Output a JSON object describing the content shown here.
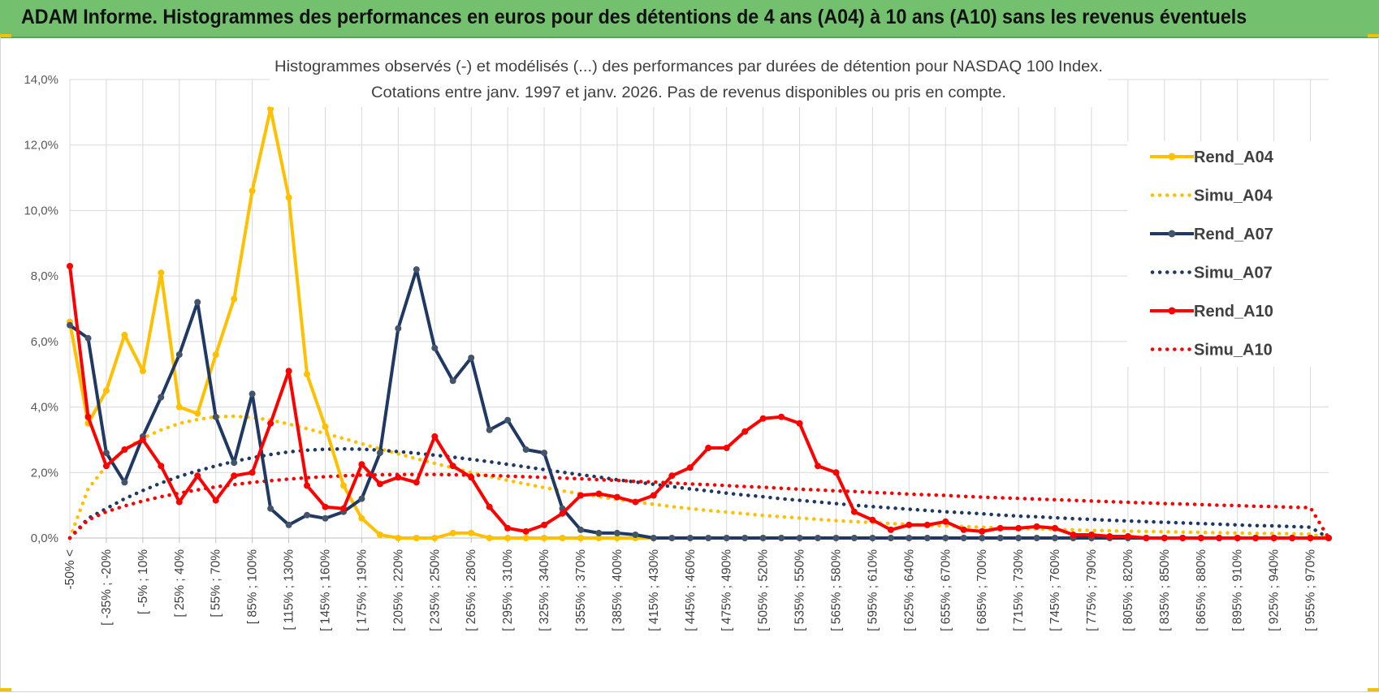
{
  "banner": {
    "title": "ADAM Informe. Histogrammes des performances en euros pour des détentions de 4 ans (A04) à 10 ans (A10) sans les revenus éventuels"
  },
  "colors": {
    "banner": "#73c16f",
    "A04": "#ffc000",
    "A07": "#1f3864",
    "A10": "#ff0000",
    "grid": "#d9d9d9",
    "text": "#404040"
  },
  "chart_data": {
    "type": "line",
    "title": "Histogrammes observés (-) et modélisés (...) des performances par durées de détention pour NASDAQ 100 Index.",
    "subtitle": "Cotations entre janv. 1997 et janv. 2026. Pas de revenus disponibles ou pris en compte.",
    "xlabel": "",
    "ylabel": "",
    "ylim": [
      0,
      14
    ],
    "yticks": [
      "0,0%",
      "2,0%",
      "4,0%",
      "6,0%",
      "8,0%",
      "10,0%",
      "12,0%",
      "14,0%"
    ],
    "grid": true,
    "legend_position": "right",
    "x_tick_labels": [
      "-50% <",
      "[ -35% ; -20%",
      "[ -5% ; 10%",
      "[ 25% ; 40%",
      "[ 55% ; 70%",
      "[ 85% ; 100%",
      "[ 115% ; 130%",
      "[ 145% ; 160%",
      "[ 175% ; 190%",
      "[ 205% ; 220%",
      "[ 235% ; 250%",
      "[ 265% ; 280%",
      "[ 295% ; 310%",
      "[ 325% ; 340%",
      "[ 355% ; 370%",
      "[ 385% ; 400%",
      "[ 415% ; 430%",
      "[ 445% ; 460%",
      "[ 475% ; 490%",
      "[ 505% ; 520%",
      "[ 535% ; 550%",
      "[ 565% ; 580%",
      "[ 595% ; 610%",
      "[ 625% ; 640%",
      "[ 655% ; 670%",
      "[ 685% ; 700%",
      "[ 715% ; 730%",
      "[ 745% ; 760%",
      "[ 775% ; 790%",
      "[ 805% ; 820%",
      "[ 835% ; 850%",
      "[ 865% ; 880%",
      "[ 895% ; 910%",
      "[ 925% ; 940%",
      "[ 955% ; 970%"
    ],
    "n_points": 70,
    "series": [
      {
        "name": "Rend_A04",
        "style": "solid",
        "color": "#ffc000",
        "values": [
          6.6,
          3.5,
          4.5,
          6.2,
          5.1,
          8.1,
          4.0,
          3.8,
          5.6,
          7.3,
          10.6,
          13.1,
          10.4,
          5.0,
          3.4,
          1.6,
          0.6,
          0.1,
          0.0,
          0.0,
          0.0,
          0.15,
          0.15,
          0.0,
          0.0,
          0.0,
          0.0,
          0.0,
          0.0,
          0.0,
          0.0,
          0.0,
          0.0,
          0.0,
          0.0,
          0.0,
          0.0,
          0.0,
          0.0,
          0.0,
          0.0,
          0.0,
          0.0,
          0.0,
          0.0,
          0.0,
          0.0,
          0.0,
          0.0,
          0.0,
          0.0,
          0.0,
          0.0,
          0.0,
          0.0,
          0.0,
          0.0,
          0.0,
          0.0,
          0.0,
          0.0,
          0.0,
          0.0,
          0.0,
          0.0,
          0.0,
          0.0,
          0.0,
          0.0,
          0.0
        ]
      },
      {
        "name": "Simu_A04",
        "style": "dotted",
        "color": "#ffc000",
        "values": [
          0.0,
          1.5,
          2.2,
          2.7,
          3.05,
          3.3,
          3.5,
          3.62,
          3.7,
          3.72,
          3.68,
          3.6,
          3.48,
          3.34,
          3.19,
          3.04,
          2.88,
          2.72,
          2.57,
          2.42,
          2.28,
          2.14,
          2.0,
          1.88,
          1.76,
          1.65,
          1.54,
          1.44,
          1.35,
          1.26,
          1.18,
          1.1,
          1.03,
          0.96,
          0.9,
          0.84,
          0.79,
          0.74,
          0.69,
          0.65,
          0.61,
          0.57,
          0.53,
          0.5,
          0.47,
          0.44,
          0.42,
          0.39,
          0.37,
          0.35,
          0.33,
          0.31,
          0.29,
          0.28,
          0.26,
          0.25,
          0.23,
          0.22,
          0.21,
          0.2,
          0.19,
          0.18,
          0.17,
          0.16,
          0.15,
          0.14,
          0.14,
          0.13,
          0.12,
          0.0
        ]
      },
      {
        "name": "Rend_A07",
        "style": "solid",
        "color": "#1f3864",
        "values": [
          6.5,
          6.1,
          2.6,
          1.7,
          3.1,
          4.3,
          5.6,
          7.2,
          3.7,
          2.3,
          4.4,
          0.9,
          0.4,
          0.7,
          0.6,
          0.8,
          1.2,
          2.6,
          6.4,
          8.2,
          5.8,
          4.8,
          5.5,
          3.3,
          3.6,
          2.7,
          2.6,
          0.9,
          0.25,
          0.15,
          0.15,
          0.1,
          0.0,
          0.0,
          0.0,
          0.0,
          0.0,
          0.0,
          0.0,
          0.0,
          0.0,
          0.0,
          0.0,
          0.0,
          0.0,
          0.0,
          0.0,
          0.0,
          0.0,
          0.0,
          0.0,
          0.0,
          0.0,
          0.0,
          0.0,
          0.0,
          0.0,
          0.0,
          0.0,
          0.0,
          0.0,
          0.0,
          0.0,
          0.0,
          0.0,
          0.0,
          0.0,
          0.0,
          0.0,
          0.0
        ]
      },
      {
        "name": "Simu_A07",
        "style": "dotted",
        "color": "#1f3864",
        "values": [
          0.0,
          0.6,
          0.9,
          1.2,
          1.45,
          1.68,
          1.88,
          2.05,
          2.2,
          2.34,
          2.45,
          2.55,
          2.63,
          2.68,
          2.71,
          2.72,
          2.71,
          2.68,
          2.64,
          2.59,
          2.53,
          2.47,
          2.4,
          2.33,
          2.25,
          2.17,
          2.09,
          2.01,
          1.93,
          1.86,
          1.78,
          1.71,
          1.64,
          1.57,
          1.5,
          1.44,
          1.37,
          1.31,
          1.26,
          1.2,
          1.15,
          1.1,
          1.05,
          1.0,
          0.96,
          0.92,
          0.88,
          0.84,
          0.8,
          0.77,
          0.74,
          0.7,
          0.67,
          0.65,
          0.62,
          0.59,
          0.57,
          0.54,
          0.52,
          0.5,
          0.48,
          0.46,
          0.44,
          0.42,
          0.4,
          0.38,
          0.37,
          0.35,
          0.33,
          0.0
        ]
      },
      {
        "name": "Rend_A10",
        "style": "solid",
        "color": "#ff0000",
        "values": [
          8.3,
          3.7,
          2.2,
          2.7,
          3.0,
          2.2,
          1.1,
          1.9,
          1.15,
          1.9,
          2.0,
          3.5,
          5.1,
          1.6,
          0.95,
          0.9,
          2.25,
          1.65,
          1.85,
          1.7,
          3.1,
          2.2,
          1.85,
          0.95,
          0.3,
          0.2,
          0.4,
          0.75,
          1.3,
          1.35,
          1.25,
          1.1,
          1.3,
          1.9,
          2.15,
          2.75,
          2.75,
          3.25,
          3.65,
          3.7,
          3.5,
          2.2,
          2.0,
          0.8,
          0.55,
          0.25,
          0.4,
          0.4,
          0.5,
          0.25,
          0.2,
          0.3,
          0.3,
          0.35,
          0.3,
          0.1,
          0.1,
          0.05,
          0.05,
          0.0,
          0.0,
          0.0,
          0.0,
          0.0,
          0.0,
          0.0,
          0.0,
          0.0,
          0.0,
          0.0
        ]
      },
      {
        "name": "Simu_A10",
        "style": "dotted",
        "color": "#ff0000",
        "values": [
          0.0,
          0.55,
          0.8,
          0.98,
          1.13,
          1.26,
          1.37,
          1.47,
          1.56,
          1.63,
          1.7,
          1.75,
          1.8,
          1.84,
          1.87,
          1.9,
          1.92,
          1.93,
          1.94,
          1.94,
          1.94,
          1.93,
          1.92,
          1.91,
          1.89,
          1.87,
          1.85,
          1.83,
          1.81,
          1.78,
          1.76,
          1.73,
          1.71,
          1.68,
          1.65,
          1.63,
          1.6,
          1.57,
          1.55,
          1.52,
          1.49,
          1.47,
          1.44,
          1.42,
          1.39,
          1.37,
          1.34,
          1.32,
          1.3,
          1.27,
          1.25,
          1.23,
          1.21,
          1.19,
          1.17,
          1.15,
          1.13,
          1.11,
          1.09,
          1.07,
          1.05,
          1.04,
          1.02,
          1.0,
          0.99,
          0.97,
          0.96,
          0.94,
          0.93,
          0.0
        ]
      }
    ]
  }
}
